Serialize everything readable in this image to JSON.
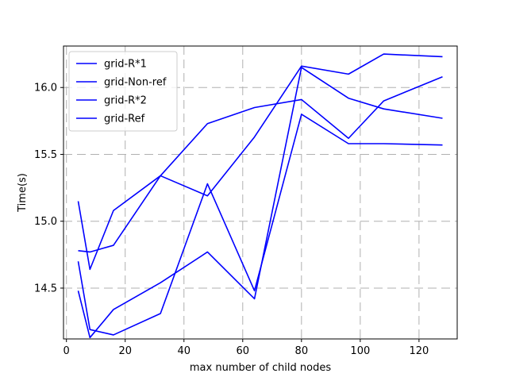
{
  "chart_data": {
    "type": "line",
    "title": "",
    "xlabel": "max number of child nodes",
    "ylabel": "Time(s)",
    "xlim": [
      -1,
      133
    ],
    "ylim": [
      14.12,
      16.31
    ],
    "xticks": [
      0,
      20,
      40,
      60,
      80,
      100,
      120
    ],
    "yticks": [
      14.5,
      15.0,
      15.5,
      16.0
    ],
    "ytick_labels": [
      "14.5",
      "15.0",
      "15.5",
      "16.0"
    ],
    "grid": true,
    "legend_position": "upper-left",
    "line_color": "#0000ff",
    "series": [
      {
        "name": "grid-R*1",
        "x": [
          4,
          8,
          16,
          32,
          48,
          64,
          80,
          96,
          108,
          128
        ],
        "y": [
          15.15,
          14.64,
          15.08,
          15.34,
          15.19,
          15.63,
          16.16,
          16.1,
          16.25,
          16.23
        ]
      },
      {
        "name": "grid-Non-ref",
        "x": [
          4,
          8,
          16,
          32,
          48,
          64,
          80,
          96,
          108,
          128
        ],
        "y": [
          14.78,
          14.77,
          14.82,
          15.34,
          15.73,
          15.85,
          15.91,
          15.62,
          15.9,
          16.08
        ]
      },
      {
        "name": "grid-R*2",
        "x": [
          4,
          8,
          16,
          32,
          48,
          64,
          80,
          96,
          108,
          128
        ],
        "y": [
          14.48,
          14.13,
          14.34,
          14.54,
          14.77,
          14.42,
          16.15,
          15.92,
          15.84,
          15.77
        ]
      },
      {
        "name": "grid-Ref",
        "x": [
          4,
          8,
          16,
          32,
          48,
          64,
          80,
          96,
          108,
          128
        ],
        "y": [
          14.7,
          14.19,
          14.15,
          14.31,
          15.28,
          14.48,
          15.8,
          15.58,
          15.58,
          15.57
        ]
      }
    ]
  }
}
